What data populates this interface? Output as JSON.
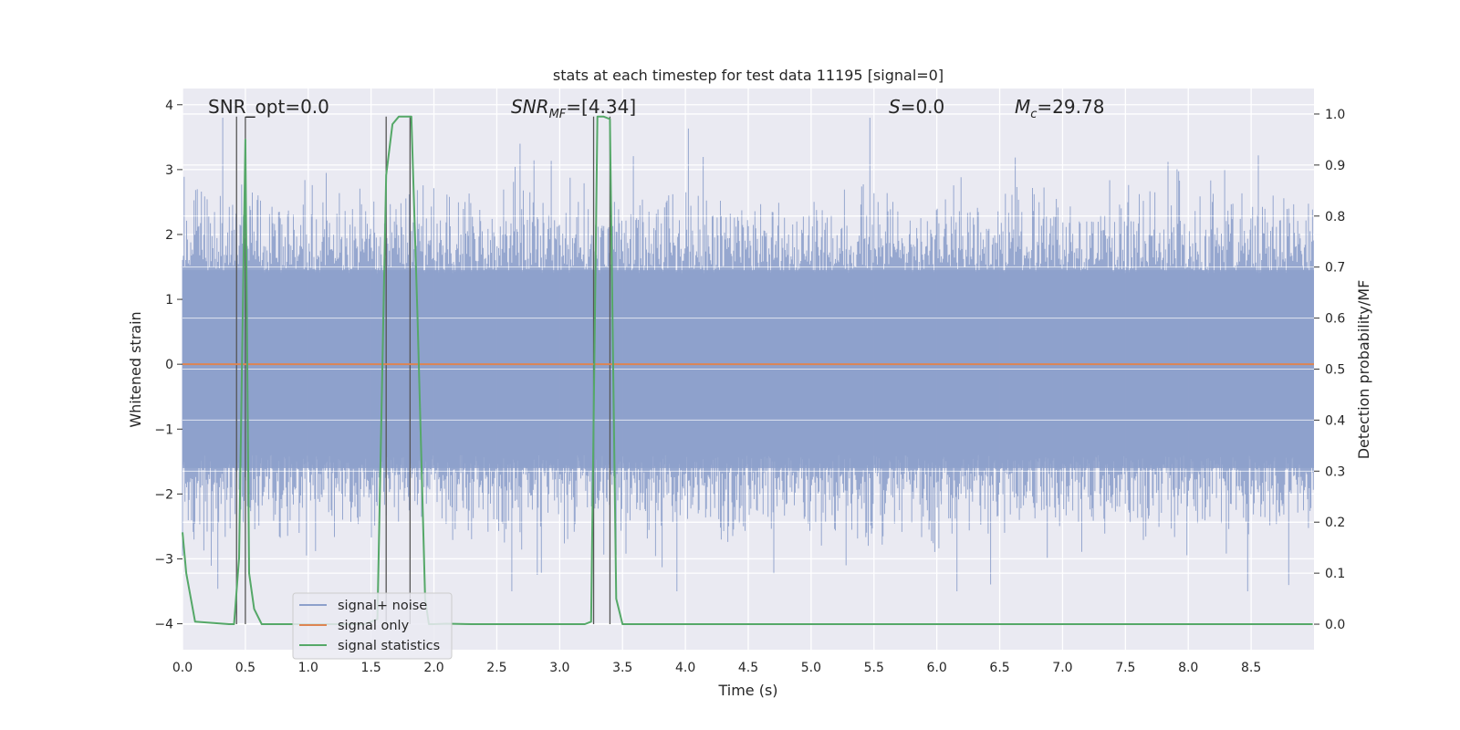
{
  "chart_data": {
    "type": "line",
    "title": "stats at each timestep for test data 11195 [signal=0]",
    "xlabel": "Time (s)",
    "ylabel": "Whitened strain",
    "ylabel_right": "Detection probability/MF",
    "xlim": [
      0.0,
      9.0
    ],
    "ylim": [
      -4.4,
      4.25
    ],
    "ylim_right": [
      -0.05,
      1.05
    ],
    "x_ticks": [
      "0.0",
      "0.5",
      "1.0",
      "1.5",
      "2.0",
      "2.5",
      "3.0",
      "3.5",
      "4.0",
      "4.5",
      "5.0",
      "5.5",
      "6.0",
      "6.5",
      "7.0",
      "7.5",
      "8.0",
      "8.5"
    ],
    "y_ticks": [
      "4",
      "3",
      "2",
      "1",
      "0",
      "−1",
      "−2",
      "−3",
      "−4"
    ],
    "y_ticks_right": [
      "1.0",
      "0.9",
      "0.8",
      "0.7",
      "0.6",
      "0.5",
      "0.4",
      "0.3",
      "0.2",
      "0.1",
      "0.0"
    ],
    "grid": true,
    "legend_position": "lower-left",
    "annotations": {
      "snr_opt": "SNR_opt=0.0",
      "snr_mf_prefix": "SNR",
      "snr_mf_sub": "MF",
      "snr_mf_value": "=[4.34]",
      "s_symbol": "S",
      "s_value": "=0.0",
      "mc_symbol": "M",
      "mc_sub": "c",
      "mc_value": "=29.78"
    },
    "series": [
      {
        "name": "signal+ noise",
        "color": "#8da0cb",
        "envelope": "noise with approximate range -3.5 to 3.8, mostly within ±2.2"
      },
      {
        "name": "signal only",
        "color": "#dd8452",
        "y": 0.0
      },
      {
        "name": "signal statistics",
        "color": "#55a868",
        "axis": "right",
        "x": [
          0.0,
          0.03,
          0.1,
          0.37,
          0.41,
          0.45,
          0.5,
          0.53,
          0.57,
          0.63,
          0.7,
          0.8,
          0.95,
          1.1,
          1.3,
          1.45,
          1.55,
          1.62,
          1.67,
          1.72,
          1.76,
          1.82,
          1.87,
          1.93,
          1.96,
          2.0,
          2.1,
          2.3,
          2.5,
          2.8,
          3.0,
          3.2,
          3.25,
          3.3,
          3.35,
          3.4,
          3.45,
          3.5,
          3.55,
          3.6,
          4.0,
          5.0,
          6.0,
          7.0,
          8.0,
          8.99
        ],
        "y": [
          0.18,
          0.1,
          0.005,
          0.0,
          0.0,
          0.13,
          0.95,
          0.1,
          0.03,
          0.0,
          0.0,
          0.0,
          0.0,
          0.0,
          0.0,
          0.0,
          0.01,
          0.88,
          0.98,
          0.995,
          0.995,
          0.995,
          0.6,
          0.05,
          0.0,
          0.0,
          0.001,
          0.0,
          0.0,
          0.0,
          0.0,
          0.0,
          0.005,
          0.995,
          0.995,
          0.99,
          0.05,
          0.0,
          0.0,
          0.0,
          0.0,
          0.0,
          0.0,
          0.0,
          0.0,
          0.0
        ]
      }
    ],
    "vertical_markers": [
      0.43,
      0.5,
      1.62,
      1.81,
      3.27,
      3.4
    ]
  }
}
